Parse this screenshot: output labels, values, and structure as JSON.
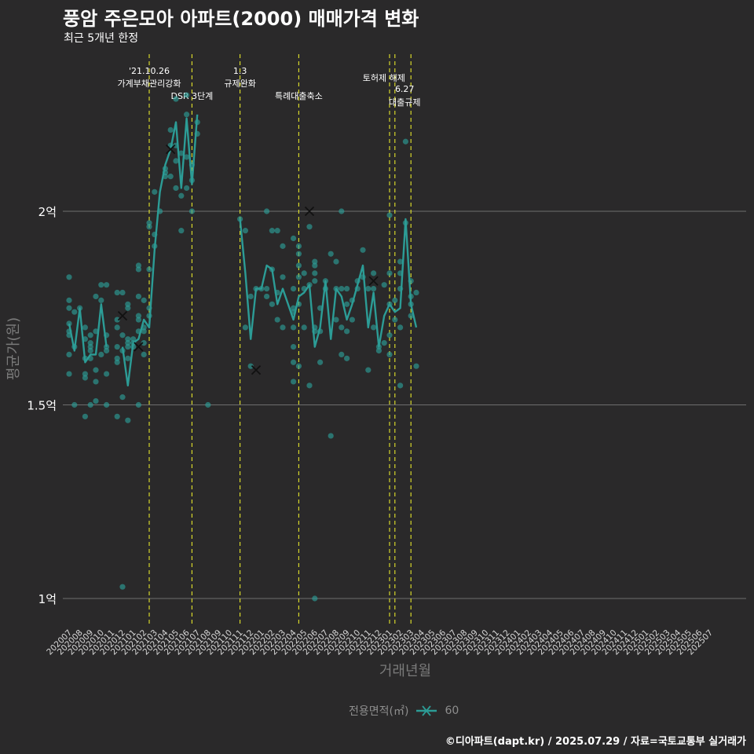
{
  "chart_data": {
    "type": "line+scatter",
    "title": "풍암 주은모아 아파트(2000) 매매가격 변화",
    "subtitle": "최근 5개년 한정",
    "xlabel": "거래년월",
    "ylabel": "평균가(원)",
    "y_unit": "억원",
    "ylim": [
      0.94,
      2.5
    ],
    "y_ticks": [
      {
        "value": 1.0,
        "label": "1억"
      },
      {
        "value": 1.5,
        "label": "1.5억"
      },
      {
        "value": 2.0,
        "label": "2억"
      }
    ],
    "categories": [
      "202007",
      "202008",
      "202009",
      "202010",
      "202011",
      "202012",
      "202101",
      "202102",
      "202103",
      "202104",
      "202105",
      "202106",
      "202107",
      "202108",
      "202109",
      "202110",
      "202111",
      "202112",
      "202201",
      "202202",
      "202203",
      "202204",
      "202205",
      "202206",
      "202207",
      "202208",
      "202209",
      "202210",
      "202211",
      "202212",
      "202301",
      "202302",
      "202303",
      "202304",
      "202305",
      "202306",
      "202307",
      "202308",
      "202309",
      "202310",
      "202311",
      "202312",
      "202401",
      "202402",
      "202403",
      "202404",
      "202405",
      "202406",
      "202407",
      "202408",
      "202409",
      "202410",
      "202411",
      "202412",
      "202501",
      "202502",
      "202503",
      "202504",
      "202505",
      "202506",
      "202507"
    ],
    "x_positions": [
      0,
      1,
      2,
      3,
      4,
      5,
      6,
      7,
      8,
      9,
      10,
      11,
      12,
      13,
      14,
      15,
      16,
      17,
      18,
      19,
      20,
      21,
      22,
      23,
      24,
      25,
      26,
      27,
      28,
      29,
      30,
      31,
      32,
      33,
      34,
      35,
      36,
      37,
      38,
      39,
      40,
      41,
      42,
      43,
      44,
      45,
      46,
      47,
      48,
      49,
      50,
      51,
      52,
      53,
      54,
      55,
      56,
      57,
      58,
      59,
      60
    ],
    "series": [
      {
        "name": "60",
        "color": "#2c9c96",
        "average_line": [
          [
            0,
            1.71
          ],
          [
            0.5,
            1.64
          ],
          [
            1,
            1.75
          ],
          [
            1.5,
            1.61
          ],
          [
            2,
            1.63
          ],
          [
            2.5,
            1.63
          ],
          [
            3,
            1.76
          ],
          [
            3.5,
            1.65
          ],
          [
            5,
            1.65
          ],
          [
            5.5,
            1.55
          ],
          [
            6,
            1.66
          ],
          [
            6.5,
            1.67
          ],
          [
            7,
            1.72
          ],
          [
            7.5,
            1.7
          ],
          [
            8,
            1.9
          ],
          [
            8.5,
            2.05
          ],
          [
            9,
            2.12
          ],
          [
            9.5,
            2.16
          ],
          [
            10,
            2.23
          ],
          [
            10.5,
            2.06
          ],
          [
            11,
            2.24
          ],
          [
            11.5,
            2.07
          ],
          [
            12,
            2.25
          ],
          [
            16,
            1.98
          ],
          [
            16.5,
            1.84
          ],
          [
            17,
            1.67
          ],
          [
            17.5,
            1.8
          ],
          [
            18,
            1.8
          ],
          [
            18.5,
            1.86
          ],
          [
            19,
            1.85
          ],
          [
            19.5,
            1.76
          ],
          [
            20,
            1.8
          ],
          [
            21,
            1.72
          ],
          [
            21.5,
            1.78
          ],
          [
            22,
            1.79
          ],
          [
            22.5,
            1.81
          ],
          [
            23,
            1.65
          ],
          [
            23.5,
            1.7
          ],
          [
            24,
            1.82
          ],
          [
            24.5,
            1.67
          ],
          [
            25,
            1.8
          ],
          [
            25.5,
            1.78
          ],
          [
            26,
            1.72
          ],
          [
            26.5,
            1.76
          ],
          [
            27,
            1.81
          ],
          [
            27.5,
            1.86
          ],
          [
            28,
            1.7
          ],
          [
            28.5,
            1.79
          ],
          [
            29,
            1.65
          ],
          [
            29.5,
            1.73
          ],
          [
            30,
            1.76
          ],
          [
            30.5,
            1.74
          ],
          [
            31,
            1.75
          ],
          [
            31.5,
            1.98
          ],
          [
            32,
            1.76
          ],
          [
            32.5,
            1.7
          ]
        ],
        "points": [
          [
            0,
            1.83
          ],
          [
            0,
            1.77
          ],
          [
            0,
            1.75
          ],
          [
            0,
            1.71
          ],
          [
            0,
            1.69
          ],
          [
            0,
            1.68
          ],
          [
            0,
            1.63
          ],
          [
            0,
            1.58
          ],
          [
            0.5,
            1.65
          ],
          [
            0.5,
            1.74
          ],
          [
            0.5,
            1.5
          ],
          [
            1,
            1.75
          ],
          [
            1.5,
            1.7
          ],
          [
            1.5,
            1.67
          ],
          [
            1.5,
            1.62
          ],
          [
            1.5,
            1.58
          ],
          [
            1.5,
            1.57
          ],
          [
            1.5,
            1.47
          ],
          [
            2,
            1.68
          ],
          [
            2,
            1.66
          ],
          [
            2,
            1.65
          ],
          [
            2,
            1.64
          ],
          [
            2,
            1.62
          ],
          [
            2,
            1.5
          ],
          [
            2.5,
            1.78
          ],
          [
            2.5,
            1.69
          ],
          [
            2.5,
            1.59
          ],
          [
            2.5,
            1.56
          ],
          [
            2.5,
            1.51
          ],
          [
            3,
            1.81
          ],
          [
            3,
            1.77
          ],
          [
            3,
            1.63
          ],
          [
            3.5,
            1.81
          ],
          [
            3.5,
            1.68
          ],
          [
            3.5,
            1.65
          ],
          [
            3.5,
            1.64
          ],
          [
            3.5,
            1.58
          ],
          [
            3.5,
            1.5
          ],
          [
            4.5,
            1.79
          ],
          [
            4.5,
            1.72
          ],
          [
            4.5,
            1.7
          ],
          [
            4.5,
            1.65
          ],
          [
            4.5,
            1.62
          ],
          [
            4.5,
            1.61
          ],
          [
            4.5,
            1.47
          ],
          [
            5,
            1.79
          ],
          [
            5,
            1.68
          ],
          [
            5,
            1.64
          ],
          [
            5,
            1.52
          ],
          [
            5,
            1.03
          ],
          [
            5.5,
            1.76
          ],
          [
            5.5,
            1.75
          ],
          [
            5.5,
            1.67
          ],
          [
            5.5,
            1.66
          ],
          [
            5.5,
            1.65
          ],
          [
            5.5,
            1.62
          ],
          [
            5.5,
            1.46
          ],
          [
            6,
            1.67
          ],
          [
            6,
            1.66
          ],
          [
            6,
            1.65
          ],
          [
            6.5,
            1.86
          ],
          [
            6.5,
            1.85
          ],
          [
            6.5,
            1.78
          ],
          [
            6.5,
            1.73
          ],
          [
            6.5,
            1.72
          ],
          [
            6.5,
            1.69
          ],
          [
            6.5,
            1.5
          ],
          [
            7,
            1.77
          ],
          [
            7,
            1.7
          ],
          [
            7,
            1.69
          ],
          [
            7,
            1.66
          ],
          [
            7,
            1.63
          ],
          [
            7.5,
            1.97
          ],
          [
            7.5,
            1.96
          ],
          [
            7.5,
            1.85
          ],
          [
            7.5,
            1.75
          ],
          [
            7.5,
            1.73
          ],
          [
            8,
            1.94
          ],
          [
            8,
            1.91
          ],
          [
            8,
            2.05
          ],
          [
            8.5,
            2.0
          ],
          [
            9,
            2.11
          ],
          [
            9,
            2.1
          ],
          [
            9,
            2.09
          ],
          [
            9.5,
            2.21
          ],
          [
            9.5,
            2.17
          ],
          [
            9.5,
            2.09
          ],
          [
            10,
            2.29
          ],
          [
            10,
            2.17
          ],
          [
            10,
            2.13
          ],
          [
            10,
            2.06
          ],
          [
            10.5,
            2.15
          ],
          [
            10.5,
            2.04
          ],
          [
            10.5,
            1.95
          ],
          [
            11,
            2.3
          ],
          [
            11,
            2.25
          ],
          [
            11,
            2.14
          ],
          [
            11,
            2.06
          ],
          [
            11.5,
            2.12
          ],
          [
            11.5,
            2.08
          ],
          [
            11.5,
            2.0
          ],
          [
            12,
            2.23
          ],
          [
            12,
            2.2
          ],
          [
            13,
            1.5
          ],
          [
            16,
            1.98
          ],
          [
            16.5,
            1.95
          ],
          [
            16.5,
            1.7
          ],
          [
            17,
            1.78
          ],
          [
            17,
            1.6
          ],
          [
            17.5,
            1.8
          ],
          [
            18,
            1.8
          ],
          [
            18.5,
            2.0
          ],
          [
            18.5,
            1.8
          ],
          [
            18.5,
            1.78
          ],
          [
            19,
            1.95
          ],
          [
            19,
            1.85
          ],
          [
            19,
            1.76
          ],
          [
            19.5,
            1.95
          ],
          [
            19.5,
            1.79
          ],
          [
            19.5,
            1.72
          ],
          [
            20,
            1.91
          ],
          [
            20,
            1.83
          ],
          [
            20,
            1.7
          ],
          [
            21,
            1.93
          ],
          [
            21,
            1.8
          ],
          [
            21,
            1.75
          ],
          [
            21,
            1.74
          ],
          [
            21,
            1.7
          ],
          [
            21,
            1.65
          ],
          [
            21,
            1.61
          ],
          [
            21,
            1.56
          ],
          [
            21.5,
            1.91
          ],
          [
            21.5,
            1.89
          ],
          [
            21.5,
            1.86
          ],
          [
            21.5,
            1.83
          ],
          [
            21.5,
            1.76
          ],
          [
            21.5,
            1.6
          ],
          [
            22,
            1.84
          ],
          [
            22,
            1.8
          ],
          [
            22,
            1.7
          ],
          [
            22.5,
            1.96
          ],
          [
            22.5,
            1.81
          ],
          [
            22.5,
            1.55
          ],
          [
            23,
            1.87
          ],
          [
            23,
            1.86
          ],
          [
            23,
            1.84
          ],
          [
            23,
            1.82
          ],
          [
            23,
            1.7
          ],
          [
            23,
            1.69
          ],
          [
            23,
            1.0
          ],
          [
            23.5,
            1.75
          ],
          [
            23.5,
            1.69
          ],
          [
            23.5,
            1.61
          ],
          [
            24,
            1.82
          ],
          [
            24,
            1.8
          ],
          [
            24.5,
            1.89
          ],
          [
            24.5,
            1.42
          ],
          [
            25,
            1.87
          ],
          [
            25,
            1.8
          ],
          [
            25,
            1.72
          ],
          [
            25.5,
            2.0
          ],
          [
            25.5,
            1.8
          ],
          [
            25.5,
            1.7
          ],
          [
            25.5,
            1.63
          ],
          [
            26,
            1.8
          ],
          [
            26,
            1.76
          ],
          [
            26,
            1.69
          ],
          [
            26,
            1.62
          ],
          [
            26.5,
            1.77
          ],
          [
            26.5,
            1.72
          ],
          [
            27,
            1.82
          ],
          [
            27,
            1.8
          ],
          [
            27.5,
            1.9
          ],
          [
            27.5,
            1.83
          ],
          [
            28,
            1.8
          ],
          [
            28,
            1.59
          ],
          [
            28.5,
            1.84
          ],
          [
            28.5,
            1.8
          ],
          [
            28.5,
            1.7
          ],
          [
            29,
            1.65
          ],
          [
            29,
            1.64
          ],
          [
            29.5,
            1.81
          ],
          [
            29.5,
            1.66
          ],
          [
            30,
            1.99
          ],
          [
            30,
            1.84
          ],
          [
            30,
            1.76
          ],
          [
            30,
            1.68
          ],
          [
            30,
            1.63
          ],
          [
            30.5,
            1.77
          ],
          [
            30.5,
            1.72
          ],
          [
            31,
            1.87
          ],
          [
            31,
            1.84
          ],
          [
            31,
            1.8
          ],
          [
            31,
            1.7
          ],
          [
            31,
            1.55
          ],
          [
            31.5,
            2.18
          ],
          [
            31.5,
            1.97
          ],
          [
            32,
            1.82
          ],
          [
            32,
            1.78
          ],
          [
            32,
            1.76
          ],
          [
            32,
            1.73
          ],
          [
            32.5,
            1.79
          ],
          [
            32.5,
            1.6
          ]
        ],
        "x_markers": [
          [
            5,
            1.73
          ],
          [
            6.5,
            1.65
          ],
          [
            9.5,
            2.16
          ],
          [
            17.5,
            1.59
          ],
          [
            22.5,
            2.0
          ],
          [
            28.5,
            1.82
          ]
        ]
      }
    ],
    "events": [
      {
        "x": 7.5,
        "label": "'21.10.26",
        "label2": "가계부채관리강화"
      },
      {
        "x": 11.5,
        "label": "DSR 3단계",
        "label2": ""
      },
      {
        "x": 16,
        "label": "1.3",
        "label2": "규제완화"
      },
      {
        "x": 21.5,
        "label": "특례대출축소",
        "label2": ""
      },
      {
        "x": 30,
        "label": "",
        "label2": ""
      },
      {
        "x": 30.5,
        "label": "토허제 해제",
        "label2": ""
      },
      {
        "x": 32,
        "label": "6.27",
        "label2": "대출규제"
      }
    ],
    "legend": {
      "title": "전용면적(㎡)",
      "entries": [
        "60"
      ],
      "position": "bottom"
    },
    "caption": "©디아파트(dapt.kr) / 2025.07.29 / 자료=국토교통부 실거래가"
  }
}
